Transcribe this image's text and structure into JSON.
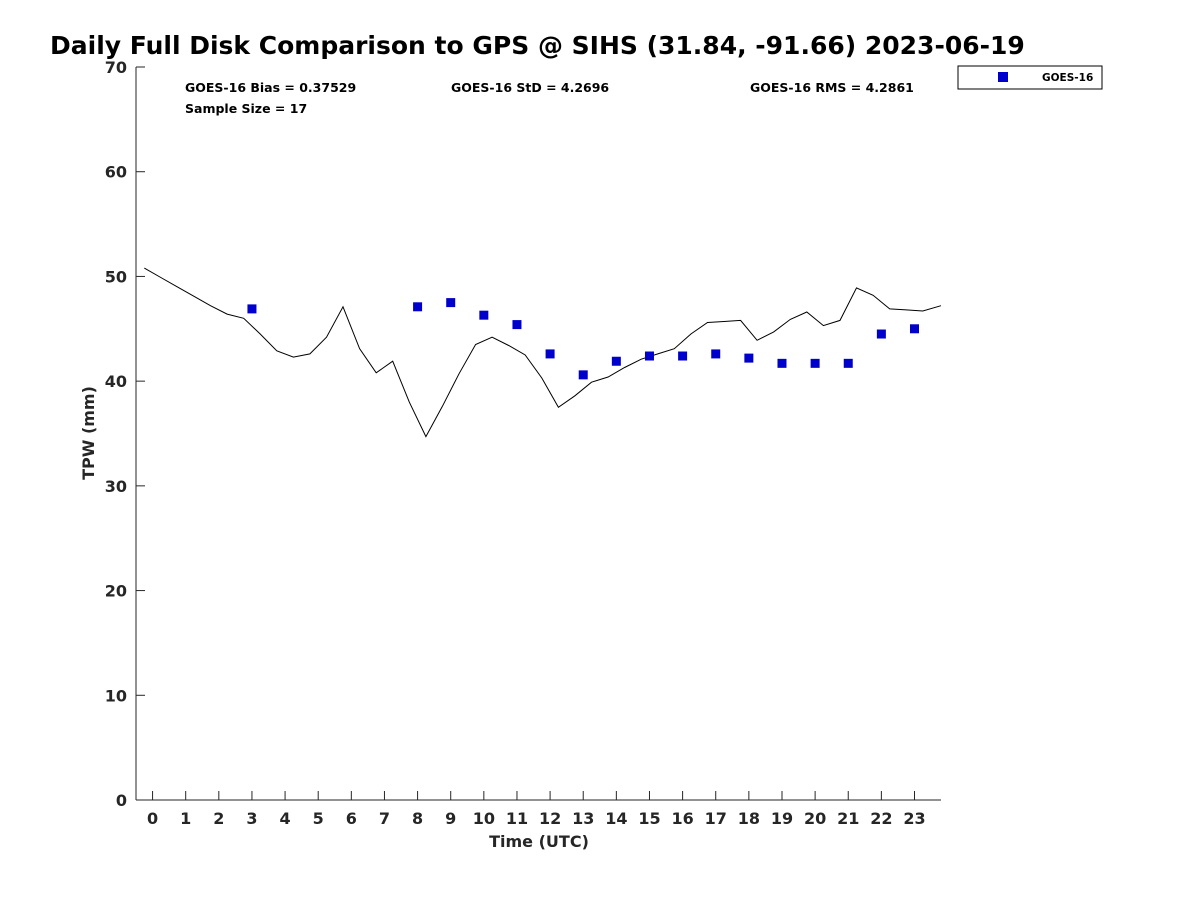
{
  "chart_data": {
    "type": "scatter",
    "title": "Daily Full Disk Comparison to GPS @ SIHS (31.84, -91.66) 2023-06-19",
    "xlabel": "Time (UTC)",
    "ylabel": "TPW (mm)",
    "xlim": [
      -0.5,
      23.8
    ],
    "ylim": [
      0,
      70
    ],
    "x_ticks": [
      "0",
      "1",
      "2",
      "3",
      "4",
      "5",
      "6",
      "7",
      "8",
      "9",
      "10",
      "11",
      "12",
      "13",
      "14",
      "15",
      "16",
      "17",
      "18",
      "19",
      "20",
      "21",
      "22",
      "23"
    ],
    "y_ticks": [
      "0",
      "10",
      "20",
      "30",
      "40",
      "50",
      "60",
      "70"
    ],
    "grid": false,
    "legend_position": "top-right, outside plot",
    "stats": [
      "GOES-16 Bias = 0.37529",
      "GOES-16 StD = 4.2696",
      "GOES-16 RMS = 4.2861",
      "Sample Size = 17"
    ],
    "series": [
      {
        "name": "GOES-16",
        "marker": "square",
        "color": "#0000cc",
        "x": [
          3,
          8,
          9,
          10,
          11,
          12,
          13,
          14,
          15,
          16,
          17,
          18,
          19,
          20,
          21,
          22,
          23
        ],
        "y": [
          46.9,
          47.1,
          47.5,
          46.3,
          45.4,
          42.6,
          40.6,
          41.9,
          42.4,
          42.4,
          42.6,
          42.2,
          41.7,
          41.7,
          41.7,
          44.5,
          45.0
        ]
      },
      {
        "marker": "line",
        "color": "#000000",
        "x": [
          -0.25,
          0.25,
          0.75,
          1.25,
          1.75,
          2.25,
          2.75,
          3.25,
          3.75,
          4.25,
          4.75,
          5.25,
          5.75,
          6.25,
          6.75,
          7.25,
          7.75,
          8.25,
          8.75,
          9.25,
          9.75,
          10.25,
          10.75,
          11.25,
          11.75,
          12.25,
          12.75,
          13.25,
          13.75,
          14.25,
          14.75,
          15.25,
          15.75,
          16.25,
          16.75,
          17.25,
          17.75,
          18.25,
          18.75,
          19.25,
          19.75,
          20.25,
          20.75,
          21.25,
          21.75,
          22.25,
          22.75,
          23.25,
          23.8
        ],
        "y": [
          50.8,
          49.9,
          49.0,
          48.1,
          47.2,
          46.4,
          46.0,
          44.5,
          42.9,
          42.3,
          42.6,
          44.2,
          47.1,
          43.1,
          40.8,
          41.9,
          38.0,
          34.7,
          37.6,
          40.7,
          43.5,
          44.2,
          43.4,
          42.5,
          40.3,
          37.5,
          38.6,
          39.9,
          40.4,
          41.3,
          42.1,
          42.6,
          43.1,
          44.5,
          45.6,
          45.7,
          45.8,
          43.9,
          44.7,
          45.9,
          46.6,
          45.3,
          45.8,
          48.9,
          48.2,
          46.9,
          46.8,
          46.7,
          47.2
        ]
      }
    ]
  }
}
